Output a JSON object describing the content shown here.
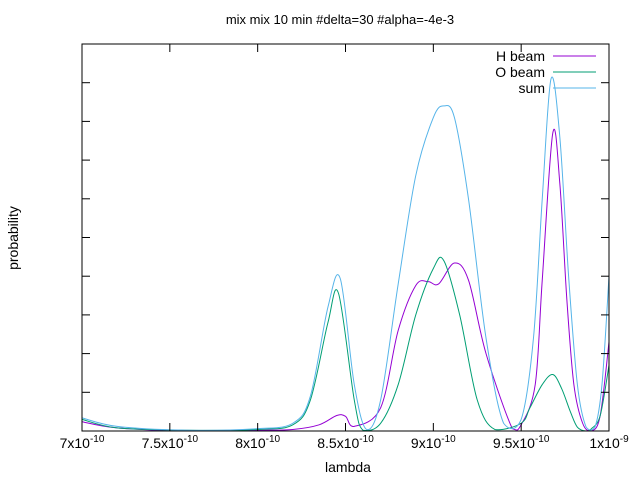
{
  "chart_data": {
    "type": "line",
    "title": "mix mix 10 min #delta=30 #alpha=-4e-3",
    "xlabel": "lambda",
    "ylabel": "probability",
    "xlim": [
      7e-10,
      1e-09
    ],
    "ylim": [
      0,
      0.5
    ],
    "grid": false,
    "legend_position": "top-right",
    "x_ticks": [
      {
        "value": 7e-10,
        "mantissa": "7",
        "exponent": "-10"
      },
      {
        "value": 7.5e-10,
        "mantissa": "7.5",
        "exponent": "-10"
      },
      {
        "value": 8e-10,
        "mantissa": "8",
        "exponent": "-10"
      },
      {
        "value": 8.5e-10,
        "mantissa": "8.5",
        "exponent": "-10"
      },
      {
        "value": 9e-10,
        "mantissa": "9",
        "exponent": "-10"
      },
      {
        "value": 9.5e-10,
        "mantissa": "9.5",
        "exponent": "-10"
      },
      {
        "value": 1e-09,
        "mantissa": "1",
        "exponent": "-9"
      }
    ],
    "y_ticks": [
      "0",
      "0.05",
      "0.1",
      "0.15",
      "0.2",
      "0.25",
      "0.3",
      "0.35",
      "0.4",
      "0.45",
      "0.5"
    ],
    "series": [
      {
        "name": "H beam",
        "color": "#9400d3",
        "x": [
          7e-10,
          7.2e-10,
          7.6e-10,
          8e-10,
          8.2e-10,
          8.35e-10,
          8.45e-10,
          8.5e-10,
          8.55e-10,
          8.7e-10,
          8.8e-10,
          8.9e-10,
          8.97e-10,
          9.03e-10,
          9.12e-10,
          9.2e-10,
          9.3e-10,
          9.45e-10,
          9.5e-10,
          9.58e-10,
          9.62e-10,
          9.68e-10,
          9.72e-10,
          9.76e-10,
          9.8e-10,
          9.85e-10,
          9.9e-10,
          9.95e-10,
          1e-09
        ],
        "y": [
          0.012,
          0.004,
          0.0,
          0.001,
          0.002,
          0.008,
          0.02,
          0.019,
          0.006,
          0.03,
          0.13,
          0.188,
          0.193,
          0.19,
          0.217,
          0.195,
          0.1,
          0.003,
          0.008,
          0.06,
          0.195,
          0.385,
          0.32,
          0.17,
          0.06,
          0.01,
          0.0,
          0.02,
          0.115
        ]
      },
      {
        "name": "O beam",
        "color": "#009e73",
        "x": [
          7e-10,
          7.2e-10,
          7.6e-10,
          8e-10,
          8.2e-10,
          8.3e-10,
          8.4e-10,
          8.46e-10,
          8.55e-10,
          8.6e-10,
          8.7e-10,
          8.8e-10,
          8.9e-10,
          9e-10,
          9.06e-10,
          9.15e-10,
          9.25e-10,
          9.35e-10,
          9.5e-10,
          9.55e-10,
          9.62e-10,
          9.68e-10,
          9.73e-10,
          9.78e-10,
          9.82e-10,
          9.87e-10,
          9.9e-10,
          9.95e-10,
          1e-09
        ],
        "y": [
          0.015,
          0.004,
          0.001,
          0.002,
          0.008,
          0.04,
          0.14,
          0.178,
          0.04,
          0.001,
          0.01,
          0.06,
          0.15,
          0.21,
          0.22,
          0.15,
          0.04,
          0.002,
          0.01,
          0.03,
          0.06,
          0.073,
          0.055,
          0.025,
          0.005,
          0.0,
          0.003,
          0.02,
          0.085
        ]
      },
      {
        "name": "sum",
        "color": "#56b4e9",
        "x": [
          7e-10,
          7.2e-10,
          7.6e-10,
          8e-10,
          8.2e-10,
          8.3e-10,
          8.4e-10,
          8.47e-10,
          8.55e-10,
          8.62e-10,
          8.7e-10,
          8.8e-10,
          8.9e-10,
          9e-10,
          9.06e-10,
          9.12e-10,
          9.2e-10,
          9.3e-10,
          9.4e-10,
          9.5e-10,
          9.57e-10,
          9.62e-10,
          9.67e-10,
          9.72e-10,
          9.77e-10,
          9.82e-10,
          9.87e-10,
          9.92e-10,
          9.96e-10,
          1e-09
        ],
        "y": [
          0.017,
          0.006,
          0.001,
          0.003,
          0.01,
          0.045,
          0.16,
          0.197,
          0.06,
          0.002,
          0.04,
          0.19,
          0.33,
          0.405,
          0.42,
          0.405,
          0.3,
          0.12,
          0.01,
          0.015,
          0.12,
          0.3,
          0.455,
          0.38,
          0.2,
          0.06,
          0.005,
          0.005,
          0.06,
          0.2
        ]
      }
    ]
  }
}
